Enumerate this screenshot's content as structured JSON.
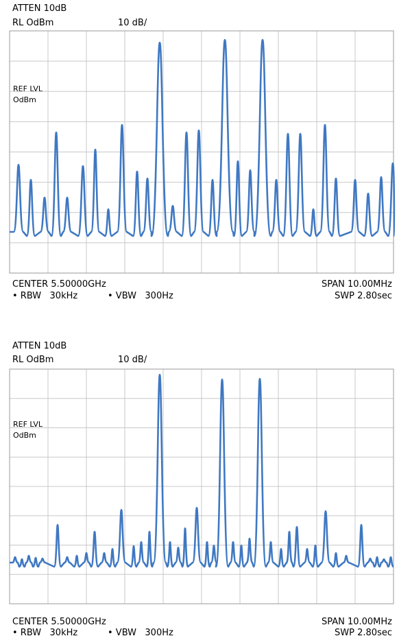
{
  "panels": [
    {
      "atten": "ATTEN 10dB",
      "rl": "RL OdBm",
      "scale": "10 dB/",
      "ref_lvl": "REF LVL",
      "ref_unit": "OdBm",
      "center": "CENTER 5.50000GHz",
      "rbw": "• RBW   30kHz",
      "vbw": "• VBW   300Hz",
      "span": "SPAN 10.00MHz",
      "swp": "SWP 2.80sec"
    },
    {
      "atten": "ATTEN 10dB",
      "rl": "RL OdBm",
      "scale": "10 dB/",
      "ref_lvl": "REF LVL",
      "ref_unit": "OdBm",
      "center": "CENTER 5.50000GHz",
      "rbw": "• RBW   30kHz",
      "vbw": "• VBW   300Hz",
      "span": "SPAN 10.00MHz",
      "swp": "SWP 2.80sec"
    }
  ]
}
